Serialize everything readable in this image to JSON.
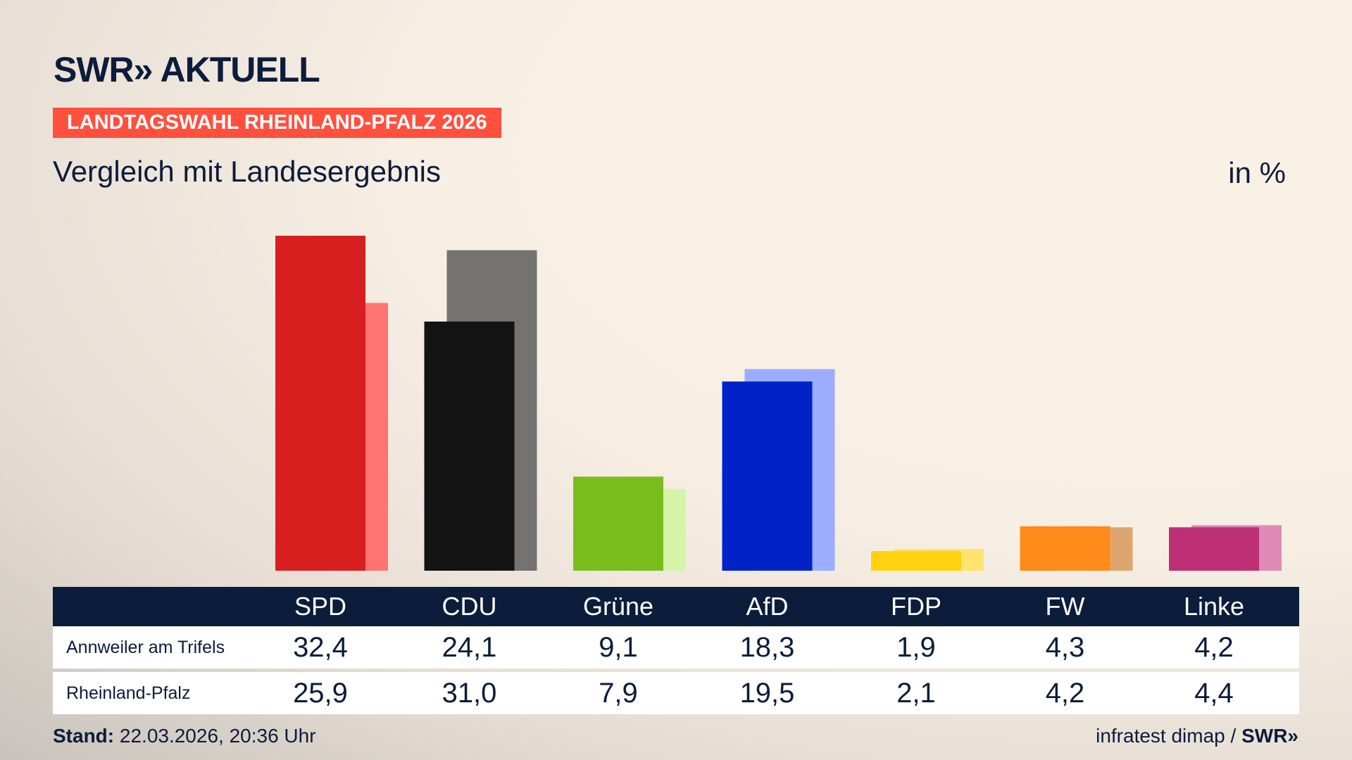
{
  "header": {
    "logo": "SWR» AKTUELL",
    "kicker": "LANDTAGSWAHL RHEINLAND-PFALZ 2026",
    "subtitle": "Vergleich mit Landesergebnis",
    "unit": "in %"
  },
  "chart_data": {
    "type": "bar",
    "categories": [
      "SPD",
      "CDU",
      "Grüne",
      "AfD",
      "FDP",
      "FW",
      "Linke"
    ],
    "series": [
      {
        "name": "Annweiler am Trifels",
        "values": [
          32.4,
          24.1,
          9.1,
          18.3,
          1.9,
          4.3,
          4.2
        ],
        "colors": [
          "#d71f1f",
          "#131313",
          "#79bd1c",
          "#0022c8",
          "#ffd20f",
          "#ff8c1a",
          "#be3075"
        ]
      },
      {
        "name": "Rheinland-Pfalz",
        "values": [
          25.9,
          31.0,
          7.9,
          19.5,
          2.1,
          4.2,
          4.4
        ],
        "colors": [
          "#ff7470",
          "#747372",
          "#d4f5a8",
          "#9cacff",
          "#ffe36e",
          "#dfa56f",
          "#e08ab6"
        ]
      }
    ],
    "display_values": [
      [
        "32,4",
        "24,1",
        "9,1",
        "18,3",
        "1,9",
        "4,3",
        "4,2"
      ],
      [
        "25,9",
        "31,0",
        "7,9",
        "19,5",
        "2,1",
        "4,2",
        "4,4"
      ]
    ],
    "ylim": [
      0,
      32.4
    ],
    "grid": false
  },
  "footer": {
    "stand_label": "Stand:",
    "stand_value": " 22.03.2026, 20:36 Uhr",
    "source": "infratest dimap / ",
    "source_logo": "SWR»"
  }
}
